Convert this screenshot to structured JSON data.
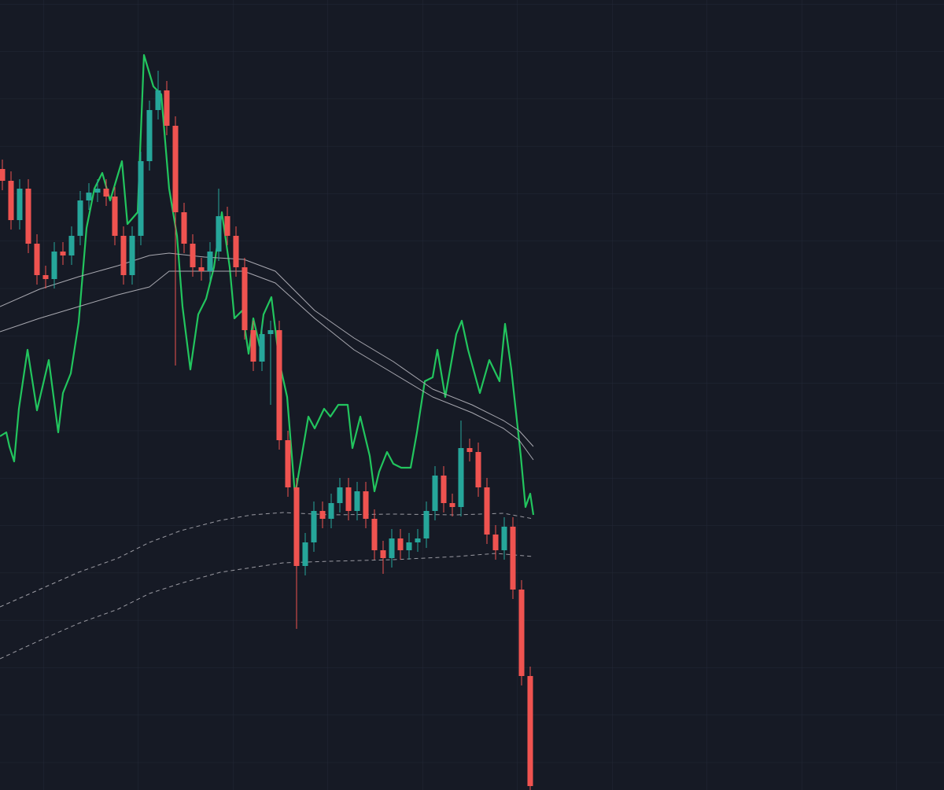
{
  "chart_data": {
    "type": "candlestick",
    "xlim": [
      0,
      1200
    ],
    "ylim": [
      -5,
      1000
    ],
    "grid": true,
    "up_color": "#26a69a",
    "down_color": "#ef5350",
    "x": [
      3,
      14,
      25,
      36,
      47,
      58,
      69,
      80,
      91,
      102,
      113,
      124,
      135,
      146,
      157,
      168,
      179,
      190,
      201,
      212,
      223,
      234,
      245,
      256,
      267,
      278,
      289,
      300,
      311,
      322,
      333,
      344,
      355,
      366,
      377,
      388,
      399,
      410,
      421,
      432,
      443,
      454,
      465,
      476,
      487,
      498,
      509,
      520,
      531,
      542,
      553,
      564,
      575,
      586,
      597,
      608,
      619,
      630,
      641,
      652,
      663,
      674
    ],
    "open": [
      785,
      770,
      720,
      760,
      690,
      650,
      645,
      680,
      675,
      700,
      745,
      755,
      760,
      750,
      700,
      650,
      700,
      795,
      860,
      885,
      840,
      730,
      690,
      660,
      655,
      680,
      725,
      700,
      660,
      580,
      540,
      575,
      580,
      440,
      380,
      280,
      310,
      350,
      340,
      360,
      380,
      350,
      375,
      340,
      300,
      290,
      315,
      300,
      310,
      315,
      350,
      395,
      360,
      355,
      430,
      425,
      380,
      320,
      300,
      330,
      250,
      140
    ],
    "high": [
      797,
      782,
      772,
      772,
      702,
      662,
      692,
      692,
      712,
      757,
      767,
      772,
      772,
      762,
      712,
      712,
      807,
      872,
      910,
      897,
      852,
      742,
      702,
      672,
      692,
      760,
      737,
      712,
      672,
      592,
      587,
      592,
      592,
      452,
      392,
      322,
      362,
      362,
      372,
      392,
      392,
      387,
      387,
      352,
      312,
      327,
      327,
      322,
      327,
      362,
      407,
      407,
      372,
      465,
      442,
      437,
      392,
      332,
      342,
      342,
      262,
      152
    ],
    "low": [
      758,
      708,
      708,
      678,
      638,
      633,
      633,
      663,
      663,
      688,
      733,
      743,
      738,
      688,
      638,
      638,
      688,
      783,
      848,
      828,
      535,
      678,
      648,
      643,
      643,
      668,
      688,
      648,
      568,
      528,
      528,
      485,
      428,
      368,
      200,
      268,
      298,
      328,
      328,
      348,
      338,
      338,
      328,
      288,
      270,
      278,
      288,
      288,
      298,
      303,
      338,
      348,
      343,
      343,
      413,
      368,
      308,
      288,
      288,
      238,
      128,
      -5
    ],
    "close": [
      770,
      720,
      760,
      690,
      650,
      645,
      680,
      675,
      700,
      745,
      755,
      760,
      750,
      700,
      650,
      700,
      795,
      860,
      885,
      840,
      730,
      690,
      660,
      655,
      680,
      725,
      700,
      660,
      580,
      540,
      575,
      580,
      440,
      380,
      280,
      310,
      350,
      340,
      360,
      380,
      350,
      375,
      340,
      300,
      290,
      315,
      300,
      310,
      315,
      350,
      395,
      360,
      355,
      430,
      425,
      380,
      320,
      300,
      330,
      250,
      140,
      0
    ],
    "lines": [
      {
        "color": "#22c55e",
        "width": 2.2,
        "dashed": false,
        "x": [
          0,
          8,
          12,
          18,
          24,
          35,
          47,
          62,
          74,
          80,
          90,
          100,
          110,
          120,
          130,
          140,
          155,
          162,
          175,
          183,
          195,
          205,
          215,
          225,
          232,
          242,
          252,
          262,
          272,
          282,
          292,
          298,
          308,
          316,
          322,
          330,
          335,
          345,
          355,
          365,
          375,
          392,
          400,
          412,
          420,
          430,
          442,
          448,
          458,
          470,
          476,
          482,
          492,
          500,
          510,
          522,
          530,
          540,
          550,
          556,
          566,
          580,
          587,
          595,
          610,
          622,
          635,
          642,
          650,
          662,
          668,
          674,
          678
        ],
        "values": [
          445,
          450,
          432,
          413,
          480,
          555,
          478,
          542,
          450,
          500,
          525,
          590,
          710,
          760,
          780,
          745,
          795,
          715,
          730,
          930,
          890,
          880,
          760,
          700,
          610,
          530,
          600,
          620,
          660,
          730,
          660,
          595,
          605,
          550,
          595,
          560,
          600,
          622,
          540,
          495,
          370,
          470,
          455,
          480,
          470,
          485,
          485,
          430,
          470,
          420,
          375,
          400,
          425,
          410,
          405,
          405,
          450,
          515,
          520,
          555,
          495,
          575,
          592,
          555,
          500,
          542,
          515,
          588,
          530,
          420,
          355,
          372,
          345
        ]
      },
      {
        "color": "#a8a8b0",
        "width": 1,
        "dashed": false,
        "x": [
          0,
          50,
          100,
          150,
          190,
          215,
          260,
          310,
          350,
          400,
          450,
          500,
          550,
          600,
          640,
          660,
          678
        ],
        "values": [
          610,
          632,
          648,
          662,
          675,
          678,
          673,
          670,
          655,
          605,
          570,
          540,
          505,
          485,
          465,
          452,
          432
        ]
      },
      {
        "color": "#a8a8b0",
        "width": 1,
        "dashed": false,
        "x": [
          0,
          50,
          100,
          150,
          190,
          215,
          260,
          310,
          350,
          400,
          450,
          500,
          550,
          600,
          640,
          660,
          678
        ],
        "values": [
          578,
          595,
          610,
          625,
          635,
          655,
          655,
          655,
          640,
          595,
          555,
          525,
          495,
          475,
          455,
          440,
          415
        ]
      },
      {
        "color": "#9a9aa2",
        "width": 1,
        "dashed": true,
        "x": [
          0,
          50,
          100,
          150,
          190,
          230,
          280,
          320,
          360,
          420,
          500,
          580,
          640,
          678
        ],
        "values": [
          228,
          250,
          272,
          290,
          310,
          325,
          338,
          345,
          348,
          345,
          346,
          345,
          347,
          340
        ]
      },
      {
        "color": "#9a9aa2",
        "width": 1,
        "dashed": true,
        "x": [
          0,
          50,
          100,
          150,
          190,
          230,
          280,
          320,
          360,
          420,
          500,
          580,
          630,
          678
        ],
        "values": [
          162,
          185,
          207,
          225,
          245,
          258,
          272,
          278,
          284,
          286,
          288,
          292,
          296,
          292
        ]
      }
    ]
  }
}
